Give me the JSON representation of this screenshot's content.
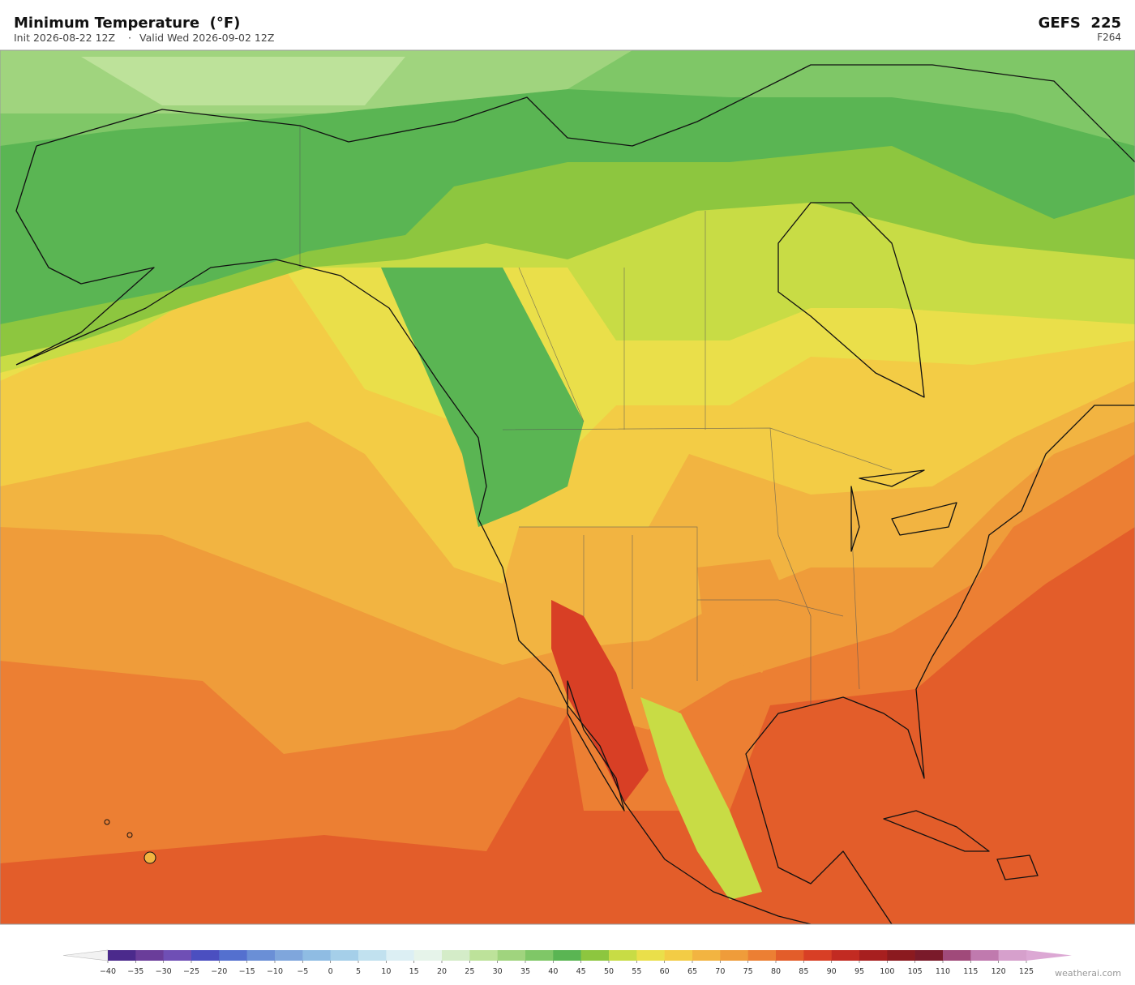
{
  "header": {
    "title": "Minimum Temperature  (°F)",
    "init": "Init 2026-08-22 12Z",
    "separator": "·",
    "valid": "Valid Wed 2026-09-02 12Z",
    "model": "GEFS  225",
    "forecast_hour": "F264"
  },
  "colorbar": {
    "under_color": "#f2f2f2",
    "over_color": "#dca8d4",
    "colors": [
      "#4b2a8c",
      "#6a3d9a",
      "#6f4fb5",
      "#4b4fc0",
      "#5470cf",
      "#6a8fd6",
      "#7fa6dc",
      "#8fbce3",
      "#a5cfe9",
      "#c1e1ef",
      "#dceff4",
      "#e6f4ea",
      "#d4ecc8",
      "#bde29a",
      "#a0d47e",
      "#7fc767",
      "#5ab553",
      "#8dc63f",
      "#c8dc45",
      "#eadf4a",
      "#f3cc45",
      "#f2b441",
      "#ef9c3a",
      "#ec7f33",
      "#e35d2a",
      "#d83f25",
      "#c22b22",
      "#a71f1f",
      "#8b1a1f",
      "#7a1a2a",
      "#a04a7a",
      "#c07aae",
      "#d6a0cc"
    ],
    "ticks": [
      {
        "value": -40,
        "label": "−40"
      },
      {
        "value": -35,
        "label": "−35"
      },
      {
        "value": -30,
        "label": "−30"
      },
      {
        "value": -25,
        "label": "−25"
      },
      {
        "value": -20,
        "label": "−20"
      },
      {
        "value": -15,
        "label": "−15"
      },
      {
        "value": -10,
        "label": "−10"
      },
      {
        "value": -5,
        "label": "−5"
      },
      0,
      5,
      10,
      15,
      20,
      25,
      30,
      35,
      40,
      45,
      50,
      55,
      60,
      65,
      70,
      75,
      80,
      85,
      90,
      95,
      100,
      105,
      110,
      115,
      120,
      125
    ]
  },
  "credit": "weatherai.com"
}
